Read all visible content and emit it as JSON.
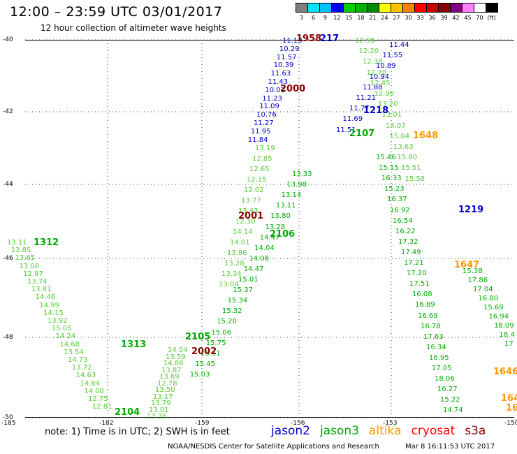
{
  "header": {
    "title": "12:00  –  23:59 UTC 03/01/2017",
    "subtitle": "12 hour collection of altimeter wave heights"
  },
  "scale": {
    "colors": [
      "#808080",
      "#00e5ff",
      "#00bfff",
      "#0000ff",
      "#00d000",
      "#00b000",
      "#008800",
      "#ffff00",
      "#ffc000",
      "#ff8000",
      "#ff0000",
      "#c80000",
      "#8b0000",
      "#800080",
      "#ff80ff",
      "#ffffff",
      "#000000"
    ],
    "labels": [
      "3",
      "6",
      "9",
      "12",
      "15",
      "18",
      "21",
      "24",
      "27",
      "30",
      "33",
      "36",
      "39",
      "42",
      "45",
      "70",
      "(ft)"
    ]
  },
  "axes": {
    "lat_labels": [
      "-40",
      "-42",
      "-44",
      "-46",
      "-48",
      "-50"
    ],
    "lon_labels": [
      "-185",
      "-182",
      "-159",
      "-156",
      "-153",
      "-150"
    ]
  },
  "note": "note:  1) Time is in UTC;  2) SWH is in feet",
  "satellites": [
    {
      "name": "jason2",
      "color": "#0000cc"
    },
    {
      "name": "jason3",
      "color": "#00aa00"
    },
    {
      "name": "altika",
      "color": "#ff9900"
    },
    {
      "name": "cryosat",
      "color": "#ff0000"
    },
    {
      "name": "s3a",
      "color": "#8b0000"
    }
  ],
  "footer": {
    "credit": "NOAA/NESDIS Center for Satellite Applications and Research",
    "timestamp": "Mar  8 16:11:53 UTC 2017"
  },
  "colors": {
    "j2": "#0000cc",
    "j3": "#00aa00",
    "alt": "#ff9900",
    "s3a": "#8b0000",
    "lt": "#55cc33"
  },
  "time_labels": [
    {
      "t": "1958",
      "c": "s3a"
    },
    {
      "t": "217",
      "c": "j2"
    },
    {
      "t": "2000",
      "c": "s3a"
    },
    {
      "t": "1218",
      "c": "j2"
    },
    {
      "t": "2107",
      "c": "j3"
    },
    {
      "t": "1648",
      "c": "alt"
    },
    {
      "t": "1219",
      "c": "j2"
    },
    {
      "t": "2001",
      "c": "s3a"
    },
    {
      "t": "2106",
      "c": "j3"
    },
    {
      "t": "1312",
      "c": "j3"
    },
    {
      "t": "1647",
      "c": "alt"
    },
    {
      "t": "1313",
      "c": "j3"
    },
    {
      "t": "2105",
      "c": "j3"
    },
    {
      "t": "2002",
      "c": "s3a"
    },
    {
      "t": "1646",
      "c": "alt"
    },
    {
      "t": "2104",
      "c": "j3"
    },
    {
      "t": "164",
      "c": "alt"
    },
    {
      "t": "16",
      "c": "alt"
    }
  ],
  "tracks": [
    {
      "name": "jason2-ascending",
      "c": "j2",
      "values": [
        "11.13",
        "10.29",
        "11.57",
        "10.39",
        "11.63",
        "11.43",
        "10.01",
        "11.23",
        "11.09",
        "10.76",
        "11.27",
        "11.95",
        "11.84"
      ]
    },
    {
      "name": "jason2-descending",
      "c": "j2",
      "values": [
        "11.44",
        "11.55",
        "10.89",
        "10.94",
        "11.88",
        "11.21",
        "11.77",
        "11.69",
        "11.51"
      ]
    },
    {
      "name": "s3a-descending-1",
      "c": "lt",
      "values": [
        "12.95",
        "12.20",
        "12.38",
        "12.70",
        "12.45",
        "12.90",
        "13.20",
        "13.01",
        "14.07",
        "15.04",
        "13.63",
        "15.80",
        "15.51",
        "15.58"
      ]
    },
    {
      "name": "s3a-ascending-1",
      "c": "lt",
      "values": [
        "13.19",
        "12.85",
        "12.65",
        "12.15",
        "12.02",
        "13.77",
        "13.43",
        "12.30",
        "14.14",
        "14.01",
        "13.86",
        "13.28",
        "13.34",
        "13.04"
      ]
    },
    {
      "name": "jason3-descending",
      "c": "j3",
      "values": [
        "15.46",
        "15.15",
        "16.33",
        "15.23",
        "16.37",
        "16.92",
        "16.54",
        "16.22",
        "17.32",
        "17.49",
        "17.21",
        "17.20",
        "17.51",
        "16.08",
        "16.89",
        "16.69",
        "16.78",
        "17.63",
        "16.34",
        "16.95",
        "17.05",
        "18.06",
        "16.27",
        "15.22",
        "14.74"
      ]
    },
    {
      "name": "jason3-descending-2",
      "c": "j3",
      "values": [
        "15.38",
        "17.86",
        "17.04",
        "16.80",
        "15.69",
        "16.94",
        "18.09",
        "18.4",
        "17"
      ]
    },
    {
      "name": "jason3-ascending",
      "c": "j3",
      "values": [
        "13.33",
        "13.98",
        "13.14",
        "13.11",
        "13.80",
        "13.28",
        "14.47",
        "14.04",
        "14.08",
        "14.47",
        "15.01",
        "15.37",
        "15.34",
        "15.32",
        "15.20",
        "15.06",
        "15.75",
        "15.11",
        "15.45",
        "15.03"
      ]
    },
    {
      "name": "jason3-west",
      "c": "lt",
      "values": [
        "13.11",
        "12.85",
        "13.65",
        "13.08",
        "12.97",
        "13.74",
        "13.81",
        "14.46",
        "14.99",
        "14.15",
        "13.92",
        "15.05",
        "14.24",
        "14.68",
        "13.54",
        "14.73",
        "13.72",
        "14.63",
        "14.84",
        "14.00",
        "12.75",
        "12.81"
      ]
    },
    {
      "name": "s3a-ascending-2",
      "c": "lt",
      "values": [
        "14.04",
        "13.59",
        "14.86",
        "13.87",
        "13.69",
        "12.78",
        "13.50",
        "13.17",
        "13.79",
        "13.01",
        "13.35"
      ]
    }
  ]
}
